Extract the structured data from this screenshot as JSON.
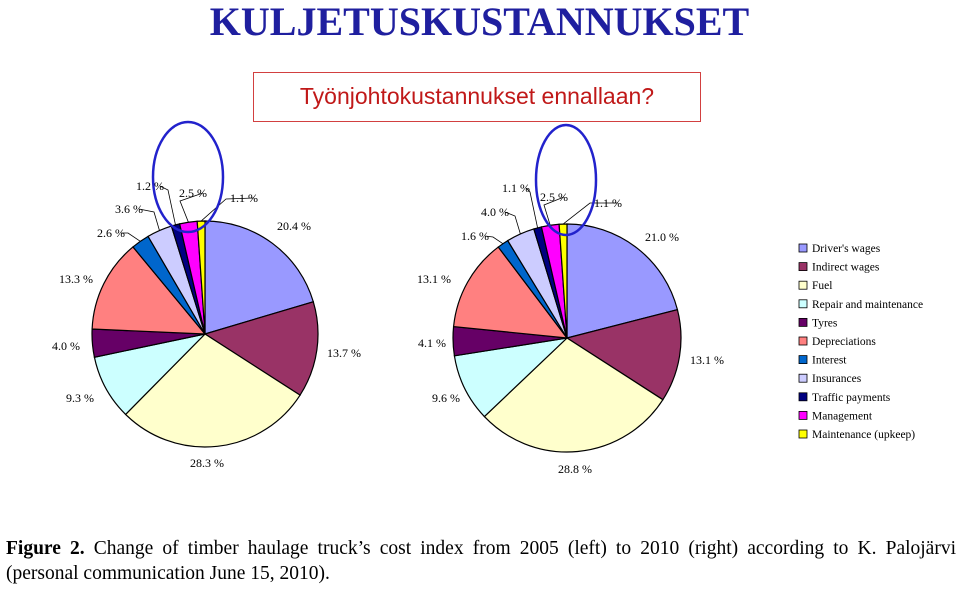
{
  "header": {
    "title": "KULJETUSKUSTANNUKSET",
    "subtitle": "Työnjohtokustannukset ennallaan?"
  },
  "caption": {
    "label": "Figure 2.",
    "text": "Change of timber haulage truck’s cost index from 2005 (left) to 2010 (right) according to K. Palojärvi (personal communication June 15, 2010)."
  },
  "chart_data": [
    {
      "type": "pie",
      "categories": [
        "Driver's wages",
        "Indirect wages",
        "Fuel",
        "Repair and maintenance",
        "Tyres",
        "Depreciations",
        "Interest",
        "Insurances",
        "Traffic payments",
        "Management",
        "Maintenance (upkeep)"
      ],
      "values": [
        20.4,
        13.7,
        28.3,
        9.3,
        4.0,
        13.3,
        2.6,
        3.6,
        1.2,
        2.5,
        1.1
      ],
      "value_labels": [
        "20.4 %",
        "13.7 %",
        "28.3 %",
        "9.3 %",
        "4.0 %",
        "13.3 %",
        "2.6 %",
        "3.6 %",
        "1.2 %",
        "2.5 %",
        "1.1 %"
      ],
      "legend": "right",
      "highlight_circle": true
    },
    {
      "type": "pie",
      "categories": [
        "Driver's wages",
        "Indirect wages",
        "Fuel",
        "Repair and maintenance",
        "Tyres",
        "Depreciations",
        "Interest",
        "Insurances",
        "Traffic payments",
        "Management",
        "Maintenance (upkeep)"
      ],
      "values": [
        21.0,
        13.1,
        28.8,
        9.6,
        4.1,
        13.1,
        1.6,
        4.0,
        1.1,
        2.5,
        1.1
      ],
      "value_labels": [
        "21.0 %",
        "13.1 %",
        "28.8 %",
        "9.6 %",
        "4.1 %",
        "13.1 %",
        "1.6 %",
        "4.0 %",
        "1.1 %",
        "2.5 %",
        "1.1 %"
      ],
      "legend": "right",
      "highlight_circle": true
    }
  ],
  "legend": {
    "items": [
      "Driver's wages",
      "Indirect wages",
      "Fuel",
      "Repair and maintenance",
      "Tyres",
      "Depreciations",
      "Interest",
      "Insurances",
      "Traffic payments",
      "Management",
      "Maintenance (upkeep)"
    ],
    "colors": [
      "#9999ff",
      "#993366",
      "#ffffcc",
      "#ccffff",
      "#660066",
      "#ff8080",
      "#0066cc",
      "#ccccff",
      "#000080",
      "#ff00ff",
      "#ffff00"
    ]
  },
  "colors": {
    "title": "#1f1f9f",
    "subtitle": "#c01818",
    "subtitle_border": "#d24040",
    "highlight_circle": "#2222cc"
  }
}
